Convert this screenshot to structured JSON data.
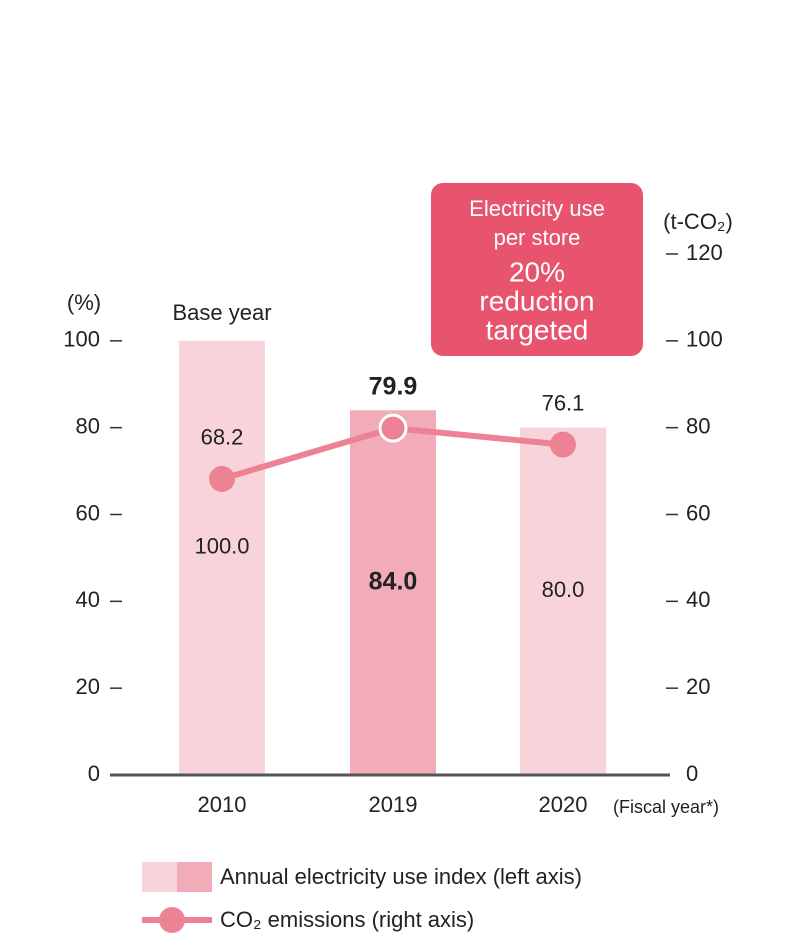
{
  "chart_data": {
    "type": "bar-line",
    "categories": [
      "2010",
      "2019",
      "2020"
    ],
    "ylabel": "(%)",
    "y2label": "(t-CO₂)",
    "xlabel": "(Fiscal year*)",
    "ylim": [
      0,
      120
    ],
    "yticks": [
      0,
      20,
      40,
      60,
      80,
      100
    ],
    "y2lim": [
      0,
      120
    ],
    "y2ticks": [
      0,
      20,
      40,
      60,
      80,
      100,
      120
    ],
    "annotation": "Base year",
    "callout_lines": [
      "Electricity use",
      "per store"
    ],
    "callout_target_lines": [
      "20%",
      "reduction",
      "targeted"
    ],
    "callout_color": "#e8546d",
    "series": [
      {
        "name": "Annual electricity use index (left axis)",
        "type": "bar",
        "colors": [
          "#f8d4da",
          "#f2acb9",
          "#f8d4da"
        ],
        "values": [
          100,
          84,
          80
        ],
        "value_labels": [
          "100.0",
          "84.0",
          "80.0"
        ]
      },
      {
        "name": "CO₂ emissions (right axis)",
        "type": "line",
        "axis": "y2",
        "color": "#ee8295",
        "values": [
          68.2,
          79.9,
          76.1
        ]
      }
    ]
  }
}
